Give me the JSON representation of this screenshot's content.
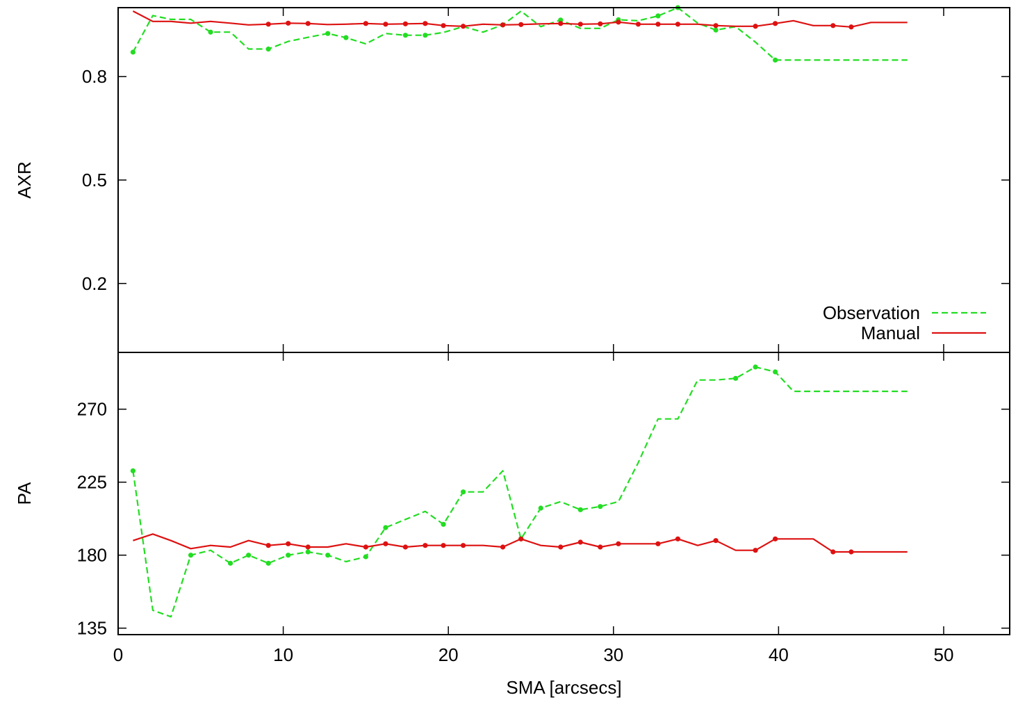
{
  "colors": {
    "observation": "#22dd22",
    "manual": "#dd1111",
    "axis": "#000000",
    "background": "#ffffff"
  },
  "chart_data": [
    {
      "type": "line",
      "panel": "top",
      "title": "",
      "xlabel": "",
      "ylabel": "AXR",
      "xlim": [
        0,
        54
      ],
      "ylim": [
        0.0,
        1.0
      ],
      "xticks": [
        0,
        10,
        20,
        30,
        40,
        50
      ],
      "show_xtick_labels": false,
      "yticks": [
        0.2,
        0.5,
        0.8
      ],
      "ytick_labels": [
        "0.2",
        "0.5",
        "0.8"
      ],
      "grid": false,
      "legend": "bottom-right",
      "series": [
        {
          "name": "Observation",
          "style": "dashed",
          "color": "#22dd22",
          "x": [
            0.9,
            2.1,
            3.2,
            4.4,
            5.6,
            6.8,
            7.9,
            9.1,
            10.3,
            11.5,
            12.7,
            13.8,
            15.0,
            16.2,
            17.4,
            18.6,
            19.7,
            20.9,
            22.1,
            23.3,
            24.4,
            25.6,
            26.8,
            28.0,
            29.2,
            30.3,
            31.5,
            32.7,
            33.9,
            35.1,
            36.2,
            37.4,
            38.6,
            39.8,
            47.8
          ],
          "y": [
            0.871,
            0.977,
            0.966,
            0.966,
            0.929,
            0.929,
            0.88,
            0.88,
            0.902,
            0.914,
            0.925,
            0.913,
            0.895,
            0.925,
            0.92,
            0.92,
            0.928,
            0.945,
            0.929,
            0.95,
            0.99,
            0.945,
            0.964,
            0.94,
            0.94,
            0.965,
            0.962,
            0.976,
            1.0,
            0.955,
            0.935,
            0.945,
            0.9,
            0.848,
            0.848
          ],
          "markers_at_index": [
            0,
            4,
            7,
            10,
            11,
            14,
            15,
            19,
            22,
            25,
            27,
            28,
            30,
            33
          ]
        },
        {
          "name": "Manual",
          "style": "solid",
          "color": "#dd1111",
          "x": [
            0.9,
            2.1,
            3.2,
            4.4,
            5.6,
            6.8,
            7.9,
            9.1,
            10.3,
            11.5,
            12.7,
            13.8,
            15.0,
            16.2,
            17.4,
            18.6,
            19.7,
            20.9,
            22.1,
            23.3,
            24.4,
            25.6,
            26.8,
            28.0,
            29.2,
            30.3,
            31.5,
            32.7,
            33.9,
            35.1,
            36.2,
            37.4,
            38.6,
            39.8,
            40.9,
            42.1,
            43.3,
            44.4,
            45.6,
            46.8,
            47.8
          ],
          "y": [
            0.99,
            0.96,
            0.96,
            0.955,
            0.96,
            0.955,
            0.95,
            0.952,
            0.955,
            0.954,
            0.951,
            0.952,
            0.954,
            0.952,
            0.953,
            0.954,
            0.948,
            0.946,
            0.952,
            0.95,
            0.951,
            0.953,
            0.954,
            0.952,
            0.953,
            0.958,
            0.952,
            0.952,
            0.952,
            0.952,
            0.948,
            0.946,
            0.946,
            0.954,
            0.962,
            0.948,
            0.948,
            0.944,
            0.957,
            0.957,
            0.957
          ],
          "markers_at_index": [
            7,
            8,
            9,
            12,
            13,
            14,
            15,
            16,
            17,
            19,
            20,
            22,
            23,
            24,
            25,
            26,
            27,
            28,
            30,
            32,
            33,
            36,
            37
          ]
        }
      ]
    },
    {
      "type": "line",
      "panel": "bottom",
      "title": "",
      "xlabel": "SMA [arcsecs]",
      "ylabel": "PA",
      "xlim": [
        0,
        54
      ],
      "ylim": [
        131,
        305
      ],
      "xticks": [
        0,
        10,
        20,
        30,
        40,
        50
      ],
      "xtick_labels": [
        "0",
        "10",
        "20",
        "30",
        "40",
        "50"
      ],
      "yticks": [
        135,
        180,
        225,
        270
      ],
      "ytick_labels": [
        "135",
        "180",
        "225",
        "270"
      ],
      "grid": false,
      "series": [
        {
          "name": "Observation",
          "style": "dashed",
          "color": "#22dd22",
          "x": [
            0.9,
            2.1,
            3.2,
            4.4,
            5.6,
            6.8,
            7.9,
            9.1,
            10.3,
            11.5,
            12.7,
            13.8,
            15.0,
            16.2,
            17.4,
            18.6,
            19.7,
            20.9,
            22.1,
            23.3,
            24.4,
            25.6,
            26.8,
            28.0,
            29.2,
            30.3,
            31.5,
            32.7,
            33.9,
            35.1,
            36.2,
            37.4,
            38.6,
            39.8,
            40.9,
            47.8
          ],
          "y": [
            232,
            146,
            142,
            180,
            183,
            175,
            180,
            175,
            180,
            182,
            180,
            176,
            179,
            197,
            202,
            207,
            199,
            219,
            219,
            232,
            190,
            209,
            213,
            208,
            210,
            213,
            237,
            264,
            264,
            288,
            288,
            289,
            296,
            293,
            281,
            281
          ],
          "markers_at_index": [
            0,
            3,
            5,
            6,
            7,
            8,
            9,
            10,
            12,
            13,
            16,
            17,
            20,
            21,
            23,
            24,
            31,
            32,
            33
          ]
        },
        {
          "name": "Manual",
          "style": "solid",
          "color": "#dd1111",
          "x": [
            0.9,
            2.1,
            3.2,
            4.4,
            5.6,
            6.8,
            7.9,
            9.1,
            10.3,
            11.5,
            12.7,
            13.8,
            15.0,
            16.2,
            17.4,
            18.6,
            19.7,
            20.9,
            22.1,
            23.3,
            24.4,
            25.6,
            26.8,
            28.0,
            29.2,
            30.3,
            31.5,
            32.7,
            33.9,
            35.1,
            36.2,
            37.4,
            38.6,
            39.8,
            40.9,
            42.1,
            43.3,
            44.4,
            45.6,
            46.8,
            47.8
          ],
          "y": [
            189,
            193,
            189,
            184,
            186,
            185,
            189,
            186,
            187,
            185,
            185,
            187,
            185,
            187,
            185,
            186,
            186,
            186,
            186,
            185,
            190,
            186,
            185,
            188,
            185,
            187,
            187,
            187,
            190,
            186,
            189,
            183,
            183,
            190,
            190,
            190,
            182,
            182,
            182,
            182,
            182
          ],
          "markers_at_index": [
            7,
            8,
            9,
            12,
            13,
            14,
            15,
            16,
            17,
            19,
            20,
            22,
            23,
            24,
            25,
            27,
            28,
            30,
            32,
            33,
            36,
            37
          ]
        }
      ]
    }
  ]
}
